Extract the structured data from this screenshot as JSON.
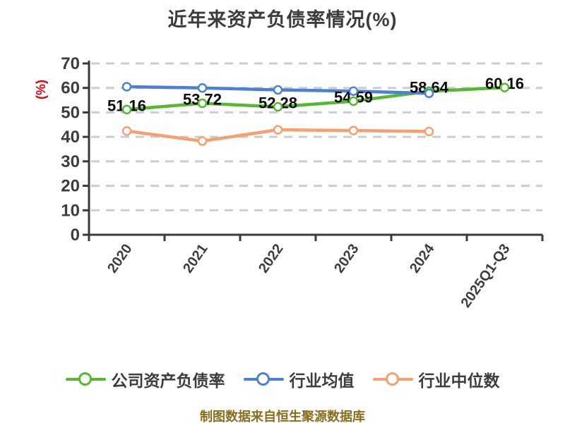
{
  "title": "近年来资产负债率情况(%)",
  "y_axis_label": "(%)",
  "footer_note": "制图数据来自恒生聚源数据库",
  "colors": {
    "background": "#ffffff",
    "title": "#3b3b3b",
    "axis": "#3a3a3a",
    "tick_label": "#3d3d3d",
    "grid": "#cdcdcd",
    "data_label": "#0b0b0b",
    "y_axis_label": "#e60012",
    "footer": "#8a6c1d",
    "legend_text": "#3d3d3d",
    "marker_fill": "#ffffff"
  },
  "chart_data": {
    "type": "line",
    "categories": [
      "2020",
      "2021",
      "2022",
      "2023",
      "2024",
      "2025Q1-Q3"
    ],
    "series": [
      {
        "name": "公司资产负债率",
        "color": "#55b82e",
        "values": [
          51.16,
          53.72,
          52.28,
          54.59,
          58.64,
          60.16
        ],
        "show_labels": true
      },
      {
        "name": "行业均值",
        "color": "#4b80d8",
        "values": [
          60.5,
          60.0,
          59.2,
          58.7,
          57.8,
          null
        ],
        "show_labels": false
      },
      {
        "name": "行业中位数",
        "color": "#f5a06e",
        "values": [
          42.4,
          38.3,
          42.9,
          42.6,
          42.2,
          null
        ],
        "show_labels": false
      }
    ],
    "ylim": [
      0,
      70
    ],
    "ytick_interval": 10,
    "grid": "horizontal-dashed",
    "legend_position": "bottom",
    "x_label_rotation": -55
  }
}
